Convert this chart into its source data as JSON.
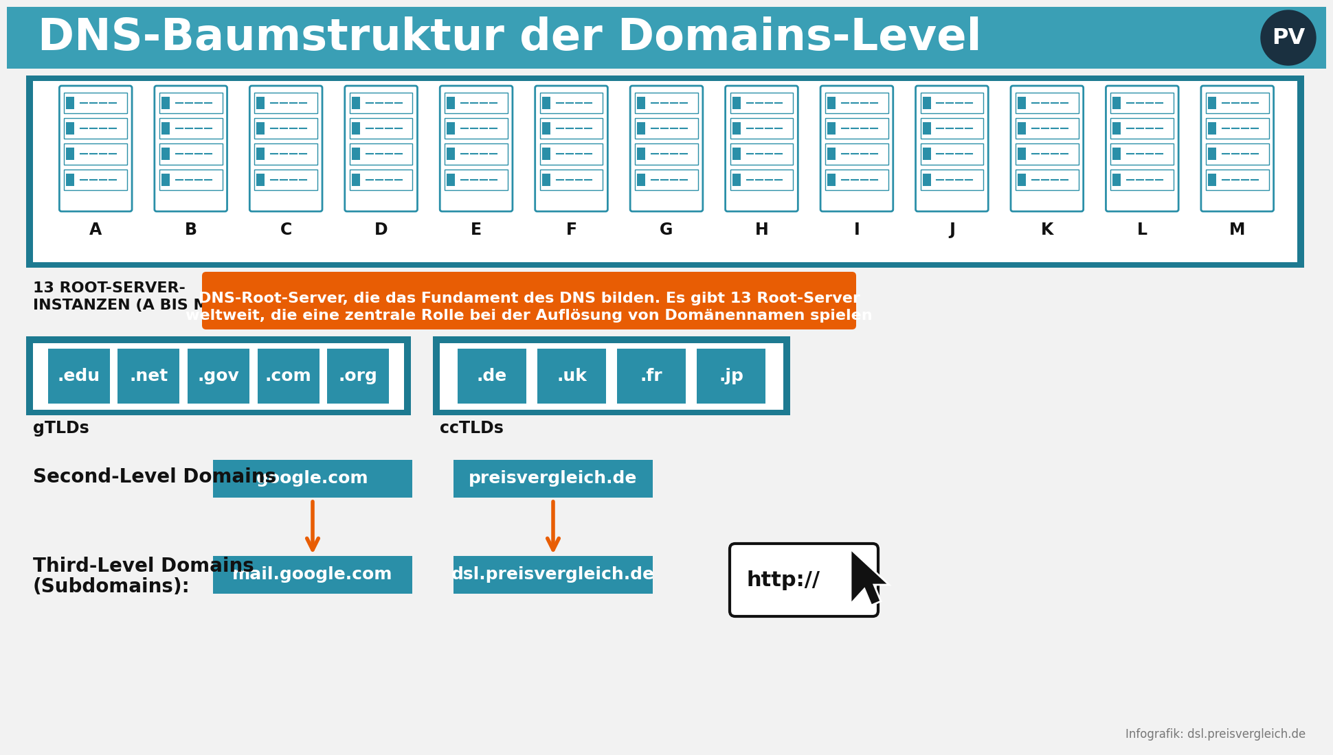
{
  "title": "DNS-Baumstruktur der Domains-Level",
  "title_bg_color": "#3a9fb5",
  "bg_color": "#ffffff",
  "teal_color": "#2a8fa8",
  "dark_teal": "#1d7a91",
  "orange_color": "#e85d04",
  "white": "#ffffff",
  "black": "#111111",
  "gray_bg": "#f2f2f2",
  "root_servers": [
    "A",
    "B",
    "C",
    "D",
    "E",
    "F",
    "G",
    "H",
    "I",
    "J",
    "K",
    "L",
    "M"
  ],
  "root_label_line1": "13 ROOT-SERVER-",
  "root_label_line2": "INSTANZEN (A BIS M)",
  "root_desc_line1": "DNS-Root-Server, die das Fundament des DNS bilden. Es gibt 13 Root-Server",
  "root_desc_line2": "weltweit, die eine zentrale Rolle bei der Auflösung von Domänennamen spielen",
  "gtlds": [
    ".edu",
    ".net",
    ".gov",
    ".com",
    ".org"
  ],
  "cctlds": [
    ".de",
    ".uk",
    ".fr",
    ".jp"
  ],
  "gtld_label": "gTLDs",
  "cctld_label": "ccTLDs",
  "second_level_label": "Second-Level Domains",
  "third_level_label_line1": "Third-Level Domains",
  "third_level_label_line2": "(Subdomains):",
  "second_level_1": "google.com",
  "second_level_2": "preisvergleich.de",
  "third_level_1": "mail.google.com",
  "third_level_2": "dsl.preisvergleich.de",
  "footer": "Infografik: dsl.preisvergleich.de",
  "http_text": "http://"
}
